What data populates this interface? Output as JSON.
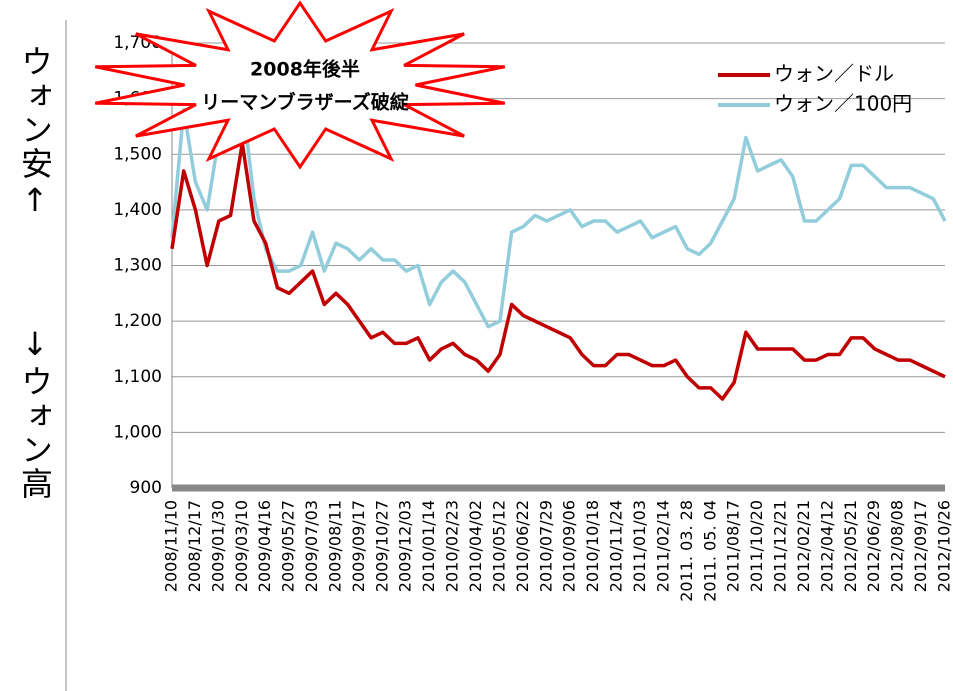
{
  "chart_data": {
    "type": "line",
    "side_labels": [
      "ウォン安↑",
      "↓ウォン高"
    ],
    "annotation": [
      "2008年後半",
      "リーマンブラザーズ破綻"
    ],
    "categories": [
      "2008/11/10",
      null,
      "2008/12/17",
      null,
      "2009/01/30",
      null,
      "2009/03/10",
      null,
      "2009/04/16",
      null,
      "2009/05/27",
      null,
      "2009/07/03",
      null,
      "2009/08/11",
      null,
      "2009/09/17",
      null,
      "2009/10/27",
      null,
      "2009/12/03",
      null,
      "2010/01/14",
      null,
      "2010/02/23",
      null,
      "2010/04/02",
      null,
      "2010/05/12",
      null,
      "2010/06/22",
      null,
      "2010/07/29",
      null,
      "2010/09/06",
      null,
      "2010/10/18",
      null,
      "2010/11/24",
      null,
      "2011/01/03",
      null,
      "2011/02/14",
      null,
      "2011. 03. 28",
      null,
      "2011. 05. 04",
      null,
      "2011/08/17",
      null,
      "2011/10/20",
      null,
      "2011/12/21",
      null,
      "2012/02/21",
      null,
      "2012/04/12",
      null,
      "2012/05/21",
      null,
      "2012/06/29",
      null,
      "2012/08/08",
      null,
      "2012/09/17",
      null,
      "2012/10/26"
    ],
    "series": [
      {
        "name": "ウォン／ドル",
        "color": "#c00000",
        "values": [
          1330,
          1470,
          1400,
          1300,
          1380,
          1390,
          1520,
          1380,
          1340,
          1260,
          1250,
          1270,
          1290,
          1230,
          1250,
          1230,
          1200,
          1170,
          1180,
          1160,
          1160,
          1170,
          1130,
          1150,
          1160,
          1140,
          1130,
          1110,
          1140,
          1230,
          1210,
          1200,
          1190,
          1180,
          1170,
          1140,
          1120,
          1120,
          1140,
          1140,
          1130,
          1120,
          1120,
          1130,
          1100,
          1080,
          1080,
          1060,
          1090,
          1180,
          1150,
          1150,
          1150,
          1150,
          1130,
          1130,
          1140,
          1140,
          1170,
          1170,
          1150,
          1140,
          1130,
          1130,
          1120,
          1110,
          1100
        ]
      },
      {
        "name": "ウォン／100円",
        "color": "#92cddc",
        "values": [
          1350,
          1580,
          1450,
          1400,
          1530,
          1540,
          1600,
          1420,
          1330,
          1290,
          1290,
          1300,
          1360,
          1290,
          1340,
          1330,
          1310,
          1330,
          1310,
          1310,
          1290,
          1300,
          1230,
          1270,
          1290,
          1270,
          1230,
          1190,
          1200,
          1360,
          1370,
          1390,
          1380,
          1390,
          1400,
          1370,
          1380,
          1380,
          1360,
          1370,
          1380,
          1350,
          1360,
          1370,
          1330,
          1320,
          1340,
          1380,
          1420,
          1530,
          1470,
          1480,
          1490,
          1460,
          1380,
          1380,
          1400,
          1420,
          1480,
          1480,
          1460,
          1440,
          1440,
          1440,
          1430,
          1420,
          1380
        ]
      }
    ],
    "ylim": [
      900,
      1700
    ],
    "yticks": [
      {
        "value": 900,
        "label": "900"
      },
      {
        "value": 1000,
        "label": "1,000"
      },
      {
        "value": 1100,
        "label": "1,100"
      },
      {
        "value": 1200,
        "label": "1,200"
      },
      {
        "value": 1300,
        "label": "1,300"
      },
      {
        "value": 1400,
        "label": "1,400"
      },
      {
        "value": 1500,
        "label": "1,500"
      },
      {
        "value": 1600,
        "label": "1,600"
      },
      {
        "value": 1700,
        "label": "1,700"
      }
    ],
    "grid": true
  }
}
